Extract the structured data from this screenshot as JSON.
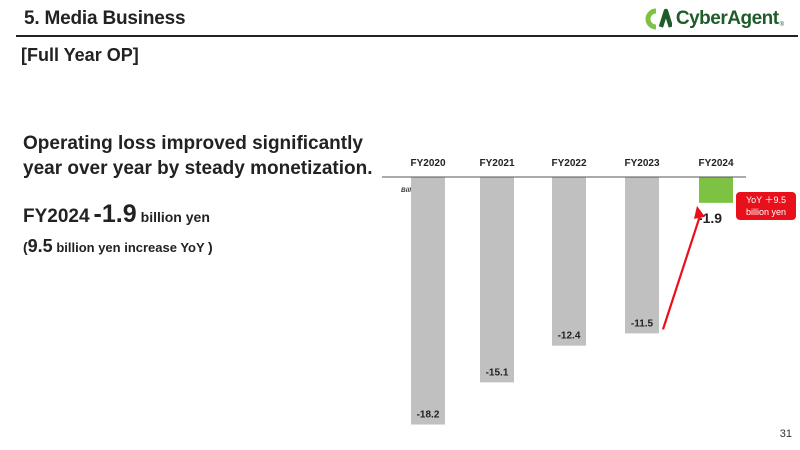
{
  "header": {
    "title": "5. Media Business",
    "logo_text": "CyberAgent",
    "logo_reg": "®"
  },
  "subtitle": "[Full Year OP]",
  "headline": "Operating loss improved significantly year over year by steady monetization.",
  "figure": {
    "fy": "FY2024",
    "value": "-1.9",
    "unit": "billion yen"
  },
  "note": {
    "open": "(",
    "value": "9.5",
    "text": " billion yen increase YoY ",
    "close": ")"
  },
  "callout": {
    "line1": "YoY ＋9.5",
    "line2": "billion yen"
  },
  "page_number": "31",
  "colors": {
    "bar": "#c0c0c0",
    "highlight_bar": "#7dc242",
    "arrow": "#e8101a",
    "logo": "#1f5c2a"
  },
  "chart_data": {
    "type": "bar",
    "categories": [
      "FY2020",
      "FY2021",
      "FY2022",
      "FY2023",
      "FY2024"
    ],
    "values": [
      -18.2,
      -15.1,
      -12.4,
      -11.5,
      -1.9
    ],
    "labels": [
      "-18.2",
      "-15.1",
      "-12.4",
      "-11.5",
      "-1.9"
    ],
    "unit_label": "Billion Yen",
    "highlight_index": 4,
    "ylim": [
      -20,
      0
    ],
    "xaxis_position": "top",
    "grid": false,
    "legend": "none"
  }
}
